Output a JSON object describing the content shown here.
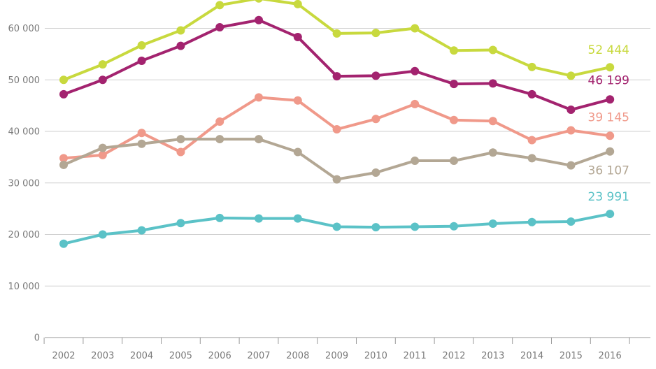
{
  "chart_data": {
    "type": "line",
    "title": "",
    "xlabel": "",
    "ylabel": "",
    "x": [
      "2002",
      "2003",
      "2004",
      "2005",
      "2006",
      "2007",
      "2008",
      "2009",
      "2010",
      "2011",
      "2012",
      "2013",
      "2014",
      "2015",
      "2016"
    ],
    "ylim": [
      0,
      66000
    ],
    "yticks": [
      0,
      10000,
      20000,
      30000,
      40000,
      50000,
      60000
    ],
    "ytick_labels": [
      "0",
      "10 000",
      "20 000",
      "30 000",
      "40 000",
      "50 000",
      "60 000"
    ],
    "grid": true,
    "series": [
      {
        "color": "#c8d93e",
        "values": [
          50000,
          53000,
          56700,
          59600,
          64500,
          65800,
          64700,
          59000,
          59100,
          60000,
          55700,
          55800,
          52500,
          50800,
          52444
        ],
        "end_label": "52 444"
      },
      {
        "color": "#a3236f",
        "values": [
          47200,
          50000,
          53700,
          56600,
          60200,
          61600,
          58300,
          50700,
          50800,
          51700,
          49200,
          49300,
          47200,
          44200,
          46199
        ],
        "end_label": "46 199"
      },
      {
        "color": "#f0998a",
        "values": [
          34800,
          35400,
          39700,
          36000,
          41900,
          46600,
          46000,
          40400,
          42400,
          45300,
          42200,
          42000,
          38300,
          40200,
          39145
        ],
        "end_label": "39 145"
      },
      {
        "color": "#b3a794",
        "values": [
          33500,
          36800,
          37600,
          38500,
          38500,
          38500,
          36000,
          30700,
          32000,
          34300,
          34300,
          35900,
          34800,
          33400,
          36107
        ],
        "end_label": "36 107"
      },
      {
        "color": "#5bc2c7",
        "values": [
          18200,
          20000,
          20800,
          22200,
          23200,
          23100,
          23100,
          21500,
          21400,
          21500,
          21600,
          22100,
          22400,
          22500,
          23991
        ],
        "end_label": "23 991"
      }
    ]
  }
}
